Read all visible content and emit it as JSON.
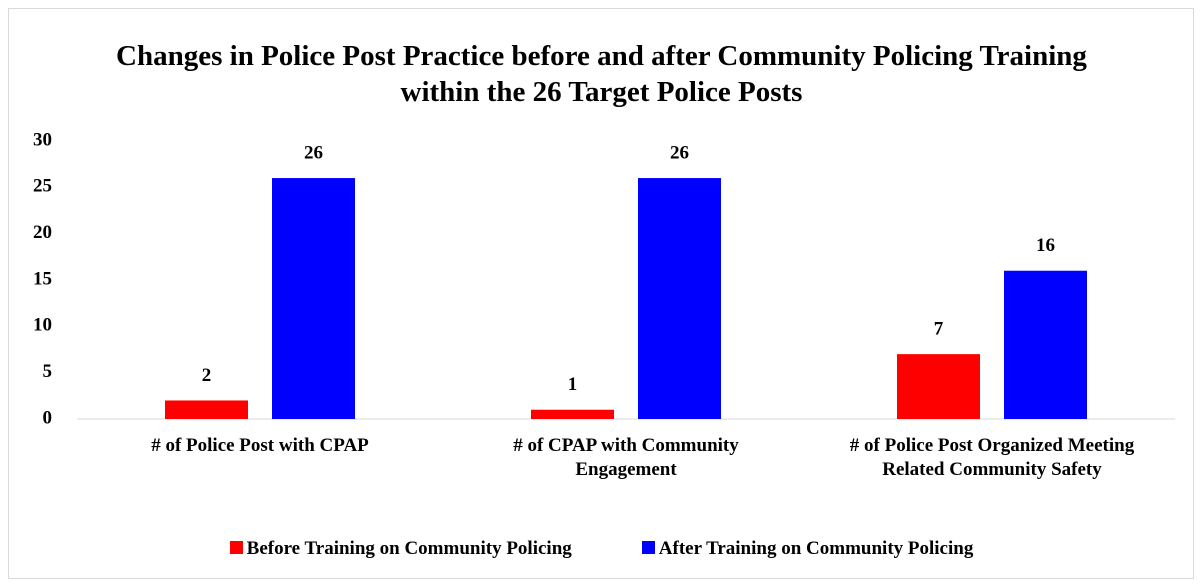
{
  "chart_data": {
    "type": "bar",
    "title": "Changes in Police Post Practice before and after Community Policing Training within the 26 Target Police Posts",
    "categories": [
      "# of Police Post with CPAP",
      "# of CPAP with Community Engagement",
      "# of Police Post Organized Meeting Related Community Safety"
    ],
    "series": [
      {
        "name": "Before Training on Community Policing",
        "color": "#ff0000",
        "values": [
          2,
          1,
          7
        ]
      },
      {
        "name": "After Training on Community Policing",
        "color": "#0000ff",
        "values": [
          26,
          26,
          16
        ]
      }
    ],
    "ylim": [
      0,
      30
    ],
    "yticks": [
      0,
      5,
      10,
      15,
      20,
      25,
      30
    ],
    "grid": false,
    "legend": "bottom"
  }
}
